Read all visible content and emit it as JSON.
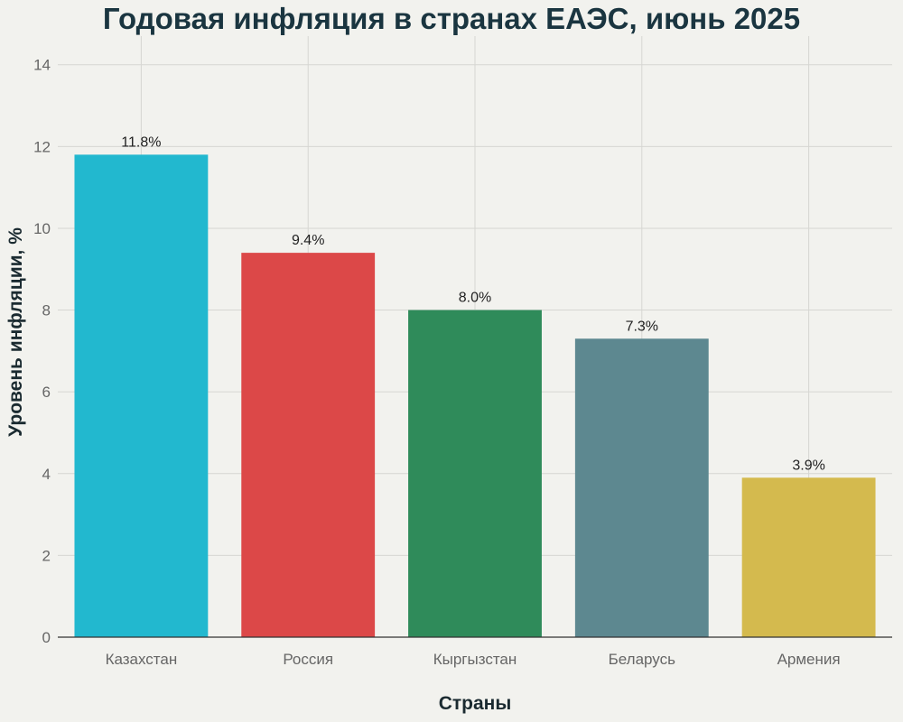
{
  "chart_data": {
    "type": "bar",
    "title": "Годовая инфляция в странах ЕАЭС, июнь 2025",
    "xlabel": "Страны",
    "ylabel": "Уровень инфляции, %",
    "categories": [
      "Казахстан",
      "Россия",
      "Кыргызстан",
      "Беларусь",
      "Армения"
    ],
    "values": [
      11.8,
      9.4,
      8.0,
      7.3,
      3.9
    ],
    "value_labels": [
      "11.8%",
      "9.4%",
      "8.0%",
      "7.3%",
      "3.9%"
    ],
    "colors": [
      "#22b8cf",
      "#dc4848",
      "#2f8b5a",
      "#5d8890",
      "#d4ba4e"
    ],
    "ylim": [
      0,
      14.7
    ],
    "yticks": [
      0,
      2,
      4,
      6,
      8,
      10,
      12,
      14
    ],
    "grid": true,
    "legend": "none"
  }
}
